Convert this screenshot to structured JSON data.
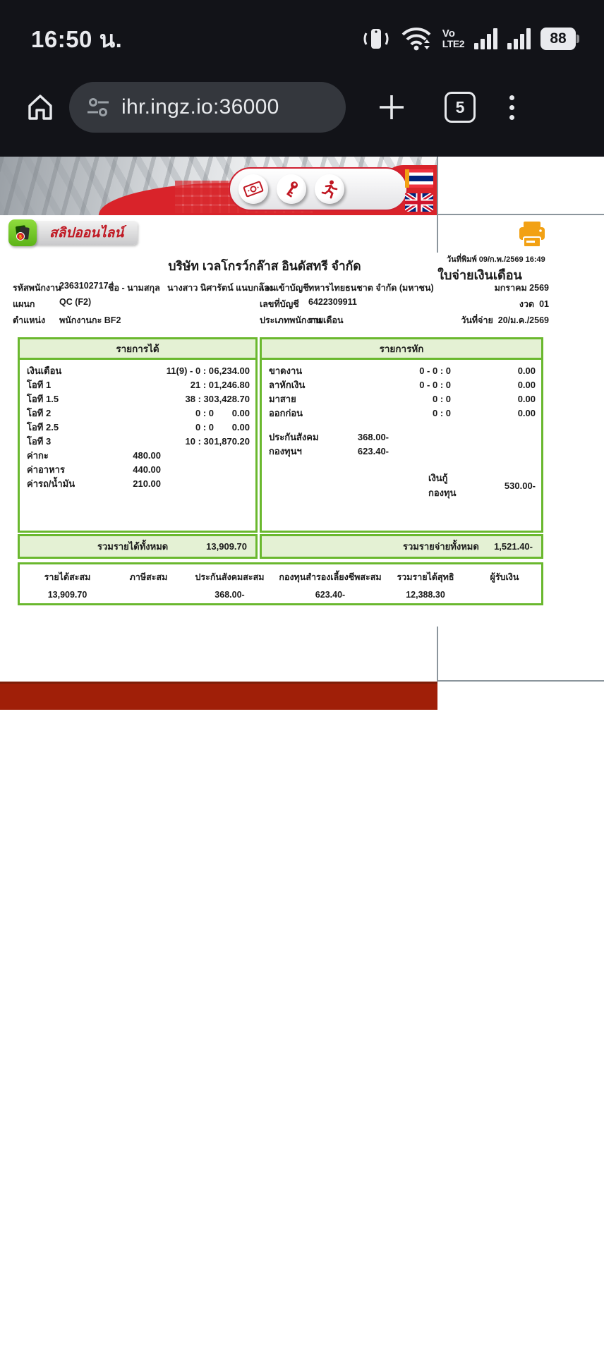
{
  "status_bar": {
    "time": "16:50 น.",
    "battery": "88",
    "volte_line1": "Vo",
    "volte_line2": "LTE2"
  },
  "browser": {
    "url": "ihr.ingz.io:36000",
    "tab_count": "5"
  },
  "banner": {
    "slip_tab_label": "สลิปออนไลน์"
  },
  "payslip": {
    "printed_label": "วันที่พิมพ์",
    "printed_value": "09/ก.พ./2569 16:49",
    "company": "บริษัท เวลโกรว์กล๊าส อินดัสทรี จำกัด",
    "doc_title": "ใบจ่ายเงินเดือน",
    "period_month": "มกราคม 2569",
    "period_label": "งวด",
    "period_value": "01",
    "pay_date_label": "วันที่จ่าย",
    "pay_date_value": "20/ม.ค./2569",
    "employee": {
      "id_label": "รหัสพนักงาน",
      "id": "2363102717",
      "name_label": "ชื่อ - นามสกุล",
      "name": "นางสาว นิศารัตน์  แนบกลาง",
      "dept_label": "แผนก",
      "dept": "QC (F2)",
      "position_label": "ตำแหน่ง",
      "position": "พนักงานกะ BF2",
      "bank_label": "โอนเข้าบัญชี",
      "bank": "ทหารไทยธนชาต จำกัด (มหาชน)",
      "account_label": "เลขที่บัญชี",
      "account": "6422309911",
      "type_label": "ประเภทพนักงาน",
      "type": "รายเดือน"
    },
    "earnings": {
      "header": "รายการได้",
      "rows": [
        {
          "cells": [
            "เงินเดือน",
            "",
            "11(9) - 0 : 0",
            "6,234.00"
          ]
        },
        {
          "cells": [
            "โอที 1",
            "",
            "21 : 0",
            "1,246.80"
          ]
        },
        {
          "cells": [
            "โอที 1.5",
            "",
            "38 : 30",
            "3,428.70"
          ]
        },
        {
          "cells": [
            "โอที 2",
            "",
            "0 : 0",
            "0.00"
          ]
        },
        {
          "cells": [
            "โอที 2.5",
            "",
            "0 : 0",
            "0.00"
          ]
        },
        {
          "cells": [
            "โอที 3",
            "",
            "10 : 30",
            "1,870.20"
          ]
        },
        {
          "cells": [
            "ค่ากะ",
            "480.00",
            "",
            ""
          ]
        },
        {
          "cells": [
            "ค่าอาหาร",
            "440.00",
            "",
            ""
          ]
        },
        {
          "cells": [
            "ค่ารถ/น้ำมัน",
            "210.00",
            "",
            ""
          ]
        }
      ],
      "total_label": "รวมรายได้ทั้งหมด",
      "total": "13,909.70"
    },
    "deductions": {
      "header": "รายการหัก",
      "rows": [
        {
          "cells": [
            "ขาดงาน",
            "",
            "0 - 0 : 0",
            "0.00"
          ]
        },
        {
          "cells": [
            "ลาหักเงิน",
            "",
            "0 - 0 : 0",
            "0.00"
          ]
        },
        {
          "cells": [
            "มาสาย",
            "",
            "0 : 0",
            "0.00"
          ]
        },
        {
          "cells": [
            "ออกก่อน",
            "",
            "0 : 0",
            "0.00"
          ]
        },
        {
          "cells": [
            "",
            "",
            "",
            ""
          ],
          "cls": "sp14"
        },
        {
          "cells": [
            "ประกันสังคม",
            "368.00-",
            "",
            ""
          ]
        },
        {
          "cells": [
            "กองทุนฯ",
            "623.40-",
            "",
            ""
          ]
        },
        {
          "cells": [
            "",
            "",
            "",
            ""
          ],
          "cls": "sp18"
        },
        {
          "cells": [
            "",
            "",
            "เงินกู้กองทุน",
            "530.00-"
          ],
          "cls": "loan"
        }
      ],
      "total_label": "รวมรายจ่ายทั้งหมด",
      "total": "1,521.40-"
    },
    "summary": {
      "headers": [
        "รายได้สะสม",
        "ภาษีสะสม",
        "ประกันสังคมสะสม",
        "กองทุนสำรองเลี้ยงชีพสะสม",
        "รวมรายได้สุทธิ",
        "ผู้รับเงิน"
      ],
      "values": [
        "13,909.70",
        "",
        "368.00-",
        "623.40-",
        "12,388.30",
        ""
      ]
    }
  },
  "colors": {
    "red-banner": "#d9232a",
    "red-bar": "#a01f08",
    "green-border": "#6ab82e",
    "green-light": "#e4f1d4",
    "orange": "#f2a114",
    "line": "#8b959c",
    "text": "#1a1a1a"
  }
}
